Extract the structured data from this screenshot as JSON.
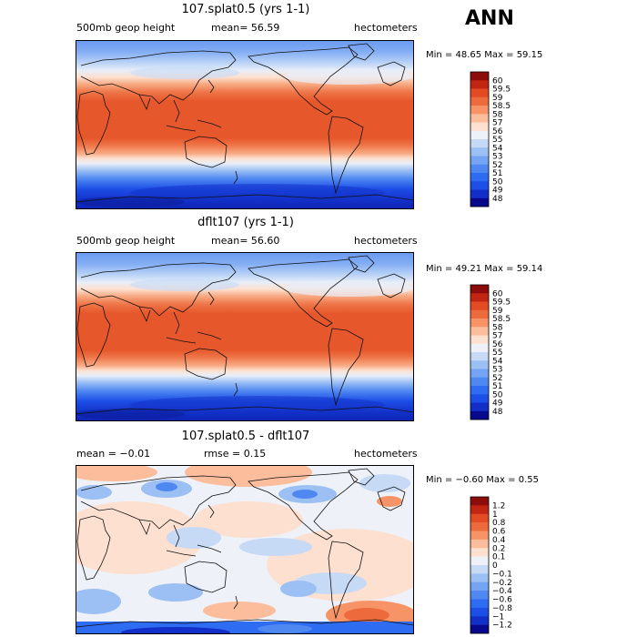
{
  "season": "ANN",
  "panels": [
    {
      "title": "107.splat0.5 (yrs 1-1)",
      "left": "500mb geop height",
      "center": "mean=  56.59",
      "right": "hectometers",
      "minmax": "Min =  48.65 Max =  59.15"
    },
    {
      "title": "dflt107 (yrs 1-1)",
      "left": "500mb geop height",
      "center": "mean=  56.60",
      "right": "hectometers",
      "minmax": "Min =  49.21 Max =  59.14"
    },
    {
      "title": "107.splat0.5 - dflt107",
      "left": "mean =  −0.01",
      "center": "rmse =   0.15",
      "right": "hectometers",
      "minmax": "Min =  −0.60 Max =   0.55"
    }
  ],
  "chart_data": [
    {
      "type": "heatmap",
      "title": "107.splat0.5 (yrs 1-1)",
      "variable": "500mb geop height",
      "units": "hectometers",
      "mean": 56.59,
      "min": 48.65,
      "max": 59.15,
      "colorbar_levels": [
        "48",
        "49",
        "50",
        "51",
        "52",
        "53",
        "54",
        "55",
        "56",
        "57",
        "58",
        "58.5",
        "59",
        "59.5",
        "60"
      ],
      "colorbar_colors": [
        "#08088c",
        "#1230c8",
        "#1d4ee6",
        "#2e6cf2",
        "#5088f2",
        "#75a4f4",
        "#9cc0f4",
        "#c6daf6",
        "#eef2f8",
        "#fde0cf",
        "#fbbd9c",
        "#f69468",
        "#ec6a3c",
        "#e24b23",
        "#c22512",
        "#8c0c0c"
      ]
    },
    {
      "type": "heatmap",
      "title": "dflt107 (yrs 1-1)",
      "variable": "500mb geop height",
      "units": "hectometers",
      "mean": 56.6,
      "min": 49.21,
      "max": 59.14,
      "colorbar_levels": [
        "48",
        "49",
        "50",
        "51",
        "52",
        "53",
        "54",
        "55",
        "56",
        "57",
        "58",
        "58.5",
        "59",
        "59.5",
        "60"
      ],
      "colorbar_colors": [
        "#08088c",
        "#1230c8",
        "#1d4ee6",
        "#2e6cf2",
        "#5088f2",
        "#75a4f4",
        "#9cc0f4",
        "#c6daf6",
        "#eef2f8",
        "#fde0cf",
        "#fbbd9c",
        "#f69468",
        "#ec6a3c",
        "#e24b23",
        "#c22512",
        "#8c0c0c"
      ]
    },
    {
      "type": "heatmap",
      "title": "107.splat0.5 - dflt107",
      "units": "hectometers",
      "mean": -0.01,
      "rmse": 0.15,
      "min": -0.6,
      "max": 0.55,
      "colorbar_levels": [
        "−1.2",
        "−1",
        "−0.8",
        "−0.6",
        "−0.4",
        "−0.2",
        "−0.1",
        "0",
        "0.1",
        "0.2",
        "0.4",
        "0.6",
        "0.8",
        "1",
        "1.2"
      ],
      "colorbar_colors": [
        "#08088c",
        "#1230c8",
        "#1d4ee6",
        "#2e6cf2",
        "#5088f2",
        "#75a4f4",
        "#9cc0f4",
        "#c6daf6",
        "#eef2f8",
        "#fde0cf",
        "#fbbd9c",
        "#f69468",
        "#ec6a3c",
        "#e24b23",
        "#c22512",
        "#8c0c0c"
      ]
    }
  ]
}
